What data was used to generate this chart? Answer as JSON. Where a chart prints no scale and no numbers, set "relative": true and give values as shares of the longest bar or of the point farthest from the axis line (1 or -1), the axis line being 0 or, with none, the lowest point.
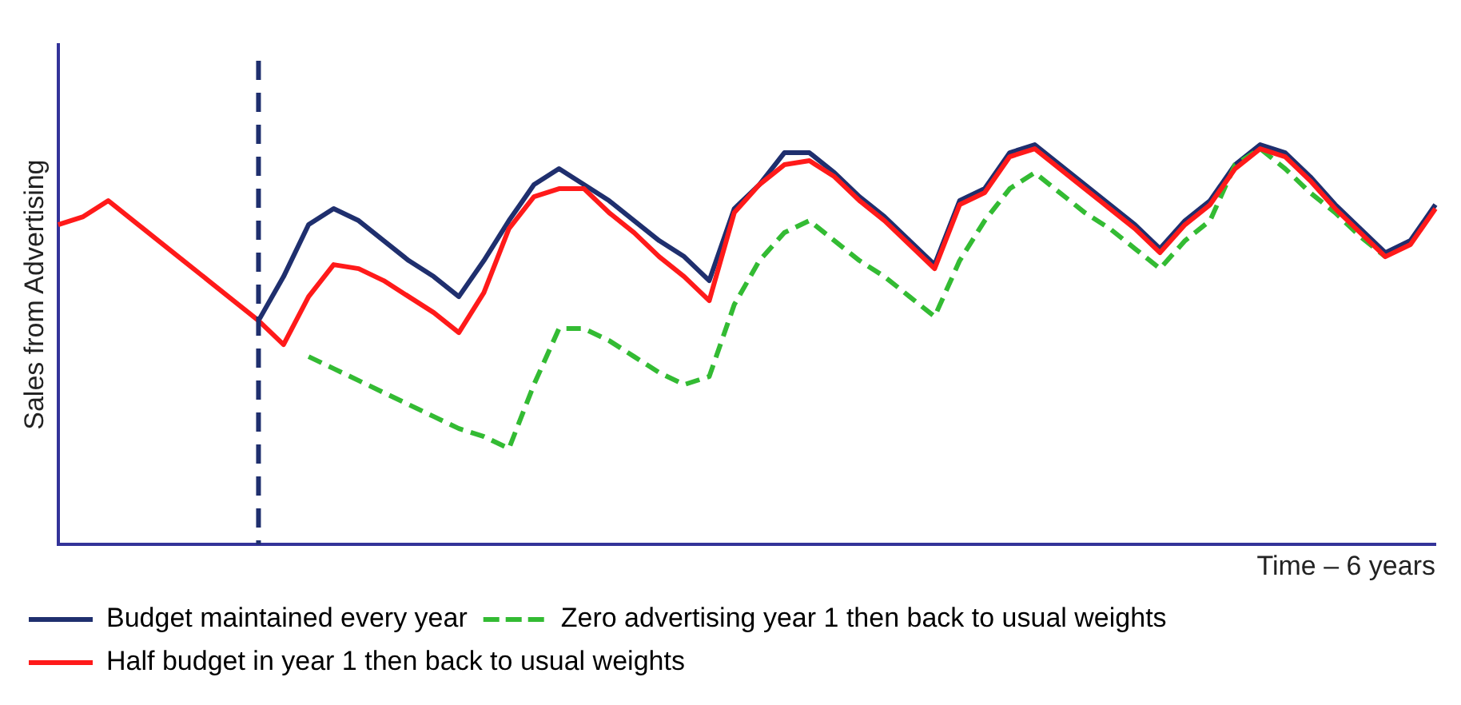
{
  "chart_data": {
    "type": "line",
    "relative": true,
    "xlabel": "Time – 6 years",
    "ylabel": "Sales from Advertising",
    "legend": "bottom",
    "grid": false,
    "marker": "none",
    "categories": [
      null,
      null,
      null,
      null,
      null,
      null,
      null,
      null,
      null,
      null,
      null,
      null,
      null,
      null,
      null,
      null,
      null,
      null,
      null,
      null,
      null,
      null,
      null,
      null,
      null,
      null,
      null,
      null,
      null,
      null,
      null,
      null,
      null,
      null,
      null,
      null,
      null,
      null,
      null,
      null,
      null,
      null,
      null,
      null,
      null,
      null,
      null,
      null,
      null,
      null,
      null,
      null,
      null,
      null,
      null,
      null
    ],
    "series": [
      {
        "name": "Budget maintained every year",
        "color": "#1f2f6e",
        "line_style": "solid",
        "values": [
          null,
          null,
          null,
          null,
          null,
          null,
          null,
          null,
          0.56,
          0.67,
          0.8,
          0.84,
          0.81,
          0.76,
          0.71,
          0.67,
          0.62,
          0.71,
          0.81,
          0.9,
          0.94,
          0.9,
          0.86,
          0.81,
          0.76,
          0.72,
          0.66,
          0.84,
          0.9,
          0.98,
          0.98,
          0.93,
          0.87,
          0.82,
          0.76,
          0.7,
          0.86,
          0.89,
          0.98,
          1.0,
          0.95,
          0.9,
          0.85,
          0.8,
          0.74,
          0.81,
          0.86,
          0.95,
          1.0,
          0.98,
          0.92,
          0.85,
          0.79,
          0.73,
          0.76,
          0.85
        ]
      },
      {
        "name": "Zero advertising year 1 then back to usual weights",
        "color": "#33bb33",
        "line_style": "dashed",
        "values": [
          null,
          null,
          null,
          null,
          null,
          null,
          null,
          null,
          null,
          null,
          0.47,
          0.44,
          0.41,
          0.38,
          0.35,
          0.32,
          0.29,
          0.27,
          0.24,
          0.4,
          0.54,
          0.54,
          0.51,
          0.47,
          0.43,
          0.4,
          0.42,
          0.6,
          0.71,
          0.78,
          0.81,
          0.76,
          0.71,
          0.67,
          0.62,
          0.57,
          0.71,
          0.81,
          0.89,
          0.93,
          0.88,
          0.83,
          0.79,
          0.74,
          0.69,
          0.76,
          0.81,
          0.95,
          0.99,
          0.94,
          0.88,
          0.83,
          0.77,
          0.72,
          null,
          null
        ]
      },
      {
        "name": "Half budget in year 1 then back to usual weights",
        "color": "#ff1a1a",
        "line_style": "solid",
        "values": [
          0.8,
          0.82,
          0.86,
          0.81,
          0.76,
          0.71,
          0.66,
          0.61,
          0.56,
          0.5,
          0.62,
          0.7,
          0.69,
          0.66,
          0.62,
          0.58,
          0.53,
          0.63,
          0.79,
          0.87,
          0.89,
          0.89,
          0.83,
          0.78,
          0.72,
          0.67,
          0.61,
          0.83,
          0.9,
          0.95,
          0.96,
          0.92,
          0.86,
          0.81,
          0.75,
          0.69,
          0.85,
          0.88,
          0.97,
          0.99,
          0.94,
          0.89,
          0.84,
          0.79,
          0.73,
          0.8,
          0.85,
          0.94,
          0.99,
          0.97,
          0.91,
          0.84,
          0.78,
          0.72,
          0.75,
          0.84
        ]
      }
    ]
  }
}
